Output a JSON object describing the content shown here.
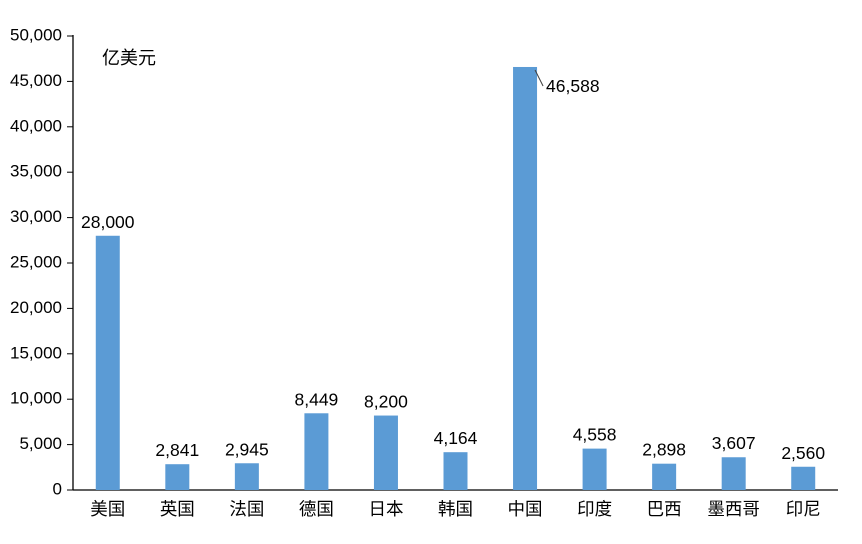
{
  "chart_data": {
    "type": "bar",
    "title": "",
    "unit_label": "亿美元",
    "categories": [
      "美国",
      "英国",
      "法国",
      "德国",
      "日本",
      "韩国",
      "中国",
      "印度",
      "巴西",
      "墨西哥",
      "印尼"
    ],
    "values": [
      28000,
      2841,
      2945,
      8449,
      8200,
      4164,
      46588,
      4558,
      2898,
      3607,
      2560
    ],
    "data_labels": [
      "28,000",
      "2,841",
      "2,945",
      "8,449",
      "8,200",
      "4,164",
      "46,588",
      "4,558",
      "2,898",
      "3,607",
      "2,560"
    ],
    "ylim": [
      0,
      50000
    ],
    "ytick_interval": 5000,
    "ytick_labels": [
      "0",
      "5,000",
      "10,000",
      "15,000",
      "20,000",
      "25,000",
      "30,000",
      "35,000",
      "40,000",
      "45,000",
      "50,000"
    ],
    "xlabel": "",
    "ylabel": "",
    "grid": false,
    "legend": "none",
    "bar_color": "#5B9BD5",
    "axis_color": "#000000",
    "callout_category": "中国"
  }
}
